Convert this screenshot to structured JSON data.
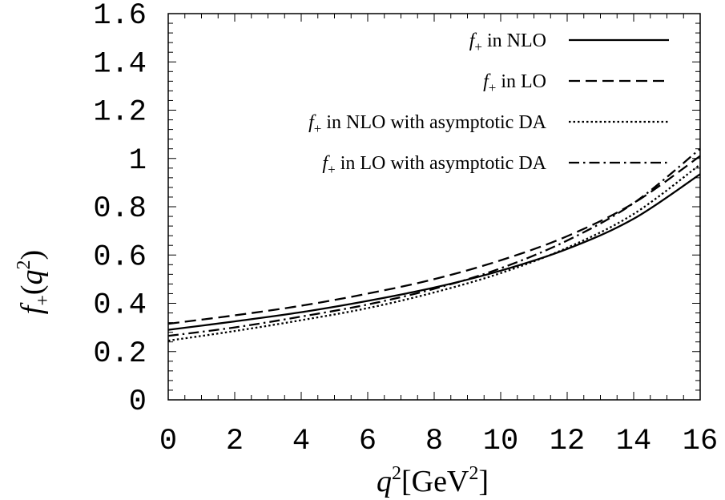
{
  "chart_data": {
    "type": "line",
    "title": "",
    "xlabel": {
      "var": "q",
      "sup": "2",
      "unit_open": "[GeV",
      "unit_sup": "2",
      "unit_close": "]"
    },
    "ylabel": {
      "f": "f",
      "sub": "+",
      "open": "(",
      "var": "q",
      "sup": "2",
      "close": ")"
    },
    "xlim": [
      0,
      16
    ],
    "ylim": [
      0,
      1.6
    ],
    "x_ticks": [
      "0",
      "2",
      "4",
      "6",
      "8",
      "10",
      "12",
      "14",
      "16"
    ],
    "y_ticks": [
      "0",
      "0.2",
      "0.4",
      "0.6",
      "0.8",
      "1",
      "1.2",
      "1.4",
      "1.6"
    ],
    "grid": false,
    "legend_position": "top-right",
    "x": [
      0,
      2,
      4,
      6,
      8,
      10,
      12,
      14,
      16
    ],
    "series": [
      {
        "name": "f+ in NLO",
        "legend": {
          "f": "f",
          "sub": "+",
          "text": " in NLO"
        },
        "dash": "solid",
        "values": [
          0.29,
          0.325,
          0.363,
          0.41,
          0.465,
          0.535,
          0.625,
          0.75,
          0.935
        ]
      },
      {
        "name": "f+ in LO",
        "legend": {
          "f": "f",
          "sub": "+",
          "text": " in LO"
        },
        "dash": "dashed",
        "values": [
          0.315,
          0.35,
          0.39,
          0.44,
          0.5,
          0.578,
          0.678,
          0.815,
          1.01
        ]
      },
      {
        "name": "f+ in NLO with asymptotic DA",
        "legend": {
          "f": "f",
          "sub": "+",
          "text": " in NLO with asymptotic DA"
        },
        "dash": "dotted",
        "values": [
          0.245,
          0.285,
          0.33,
          0.38,
          0.445,
          0.525,
          0.63,
          0.77,
          0.975
        ]
      },
      {
        "name": "f+ in LO with asymptotic DA",
        "legend": {
          "f": "f",
          "sub": "+",
          "text": " in LO with asymptotic DA"
        },
        "dash": "dashdot",
        "values": [
          0.265,
          0.3,
          0.345,
          0.395,
          0.46,
          0.545,
          0.66,
          0.815,
          1.04
        ]
      }
    ]
  }
}
